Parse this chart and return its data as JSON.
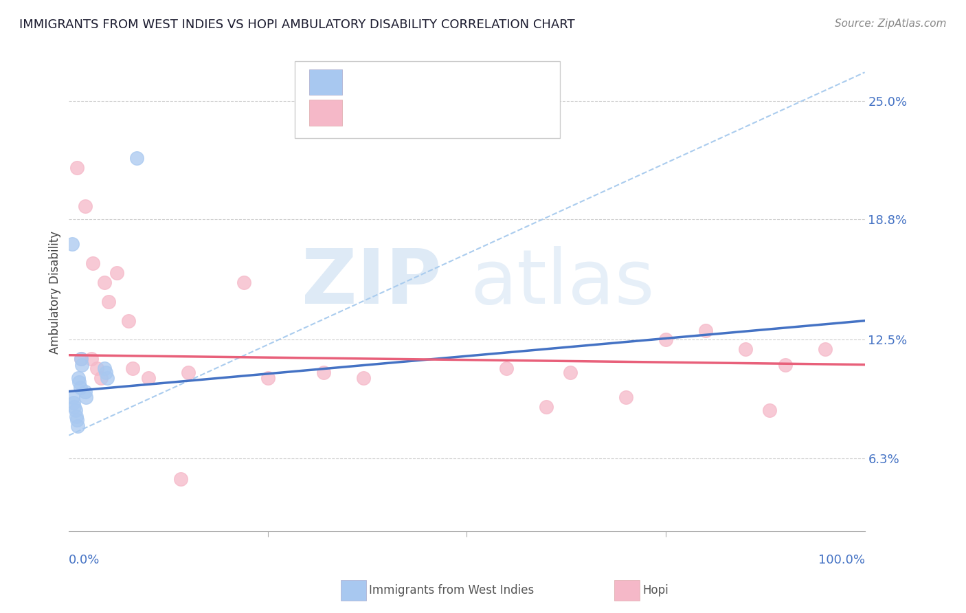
{
  "title": "IMMIGRANTS FROM WEST INDIES VS HOPI AMBULATORY DISABILITY CORRELATION CHART",
  "source": "Source: ZipAtlas.com",
  "ylabel": "Ambulatory Disability",
  "yticks": [
    6.3,
    12.5,
    18.8,
    25.0
  ],
  "ytick_labels": [
    "6.3%",
    "12.5%",
    "18.8%",
    "25.0%"
  ],
  "xmin": 0.0,
  "xmax": 100.0,
  "ymin": 2.5,
  "ymax": 27.5,
  "blue_color": "#A8C8F0",
  "pink_color": "#F5B8C8",
  "line_blue": "#4472C4",
  "line_pink": "#E8607A",
  "line_blue_dashed": "#AACCEE",
  "blue_points_x": [
    0.5,
    0.6,
    0.7,
    0.8,
    0.9,
    1.0,
    1.1,
    1.2,
    1.3,
    1.4,
    1.5,
    1.6,
    2.0,
    2.1,
    4.5,
    4.6,
    4.8,
    0.4,
    8.5
  ],
  "blue_points_y": [
    9.5,
    9.2,
    9.0,
    8.8,
    8.5,
    8.3,
    8.0,
    10.5,
    10.3,
    10.0,
    11.5,
    11.2,
    9.8,
    9.5,
    11.0,
    10.8,
    10.5,
    17.5,
    22.0
  ],
  "pink_points_x": [
    1.0,
    2.0,
    3.0,
    4.5,
    5.0,
    6.0,
    7.5,
    10.0,
    15.0,
    22.0,
    32.0,
    37.0,
    55.0,
    63.0,
    75.0,
    80.0,
    85.0,
    90.0,
    1.5,
    3.5,
    2.8,
    4.0,
    8.0,
    14.0,
    25.0,
    60.0,
    70.0,
    88.0,
    95.0
  ],
  "pink_points_y": [
    21.5,
    19.5,
    16.5,
    15.5,
    14.5,
    16.0,
    13.5,
    10.5,
    10.8,
    15.5,
    10.8,
    10.5,
    11.0,
    10.8,
    12.5,
    13.0,
    12.0,
    11.2,
    11.5,
    11.0,
    11.5,
    10.5,
    11.0,
    5.2,
    10.5,
    9.0,
    9.5,
    8.8,
    12.0
  ],
  "blue_line_x0": 0.0,
  "blue_line_y0": 9.8,
  "blue_line_x1": 100.0,
  "blue_line_y1": 13.5,
  "pink_line_x0": 0.0,
  "pink_line_y0": 11.7,
  "pink_line_x1": 100.0,
  "pink_line_y1": 11.2,
  "dash_line_x0": 0.0,
  "dash_line_y0": 7.5,
  "dash_line_x1": 100.0,
  "dash_line_y1": 26.5
}
